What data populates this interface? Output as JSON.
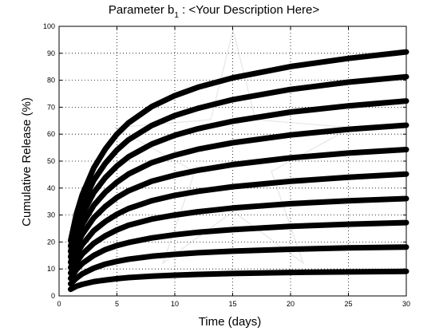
{
  "chart_data": {
    "type": "line",
    "title": {
      "prefix": "Parameter b",
      "subscript": "1",
      "suffix": " : <Your Description Here>"
    },
    "xlabel": "Time (days)",
    "ylabel": "Cumulative Release (%)",
    "xlim": [
      0,
      30
    ],
    "ylim": [
      0,
      100
    ],
    "xticks": [
      0,
      5,
      10,
      15,
      20,
      25,
      30
    ],
    "yticks": [
      0,
      10,
      20,
      30,
      40,
      50,
      60,
      70,
      80,
      90,
      100
    ],
    "grid": true,
    "legend": "none",
    "x": [
      1,
      1.5,
      2,
      3,
      4,
      5,
      6,
      8,
      10,
      12,
      15,
      20,
      25,
      30
    ],
    "series": [
      {
        "values": [
          2.5,
          3.6,
          4.3,
          5.3,
          5.9,
          6.4,
          6.8,
          7.3,
          7.7,
          8.0,
          8.3,
          8.7,
          8.9,
          9.1
        ]
      },
      {
        "values": [
          4.5,
          6.6,
          8.2,
          10.3,
          11.8,
          12.8,
          13.6,
          14.7,
          15.4,
          16.0,
          16.6,
          17.3,
          17.8,
          18.1
        ]
      },
      {
        "values": [
          6.5,
          9.8,
          12.0,
          15.0,
          17.2,
          18.7,
          19.8,
          21.5,
          22.7,
          23.6,
          24.6,
          25.8,
          26.6,
          27.2
        ]
      },
      {
        "values": [
          8.5,
          12.5,
          15.5,
          19.5,
          22.3,
          24.5,
          26.2,
          28.5,
          30.0,
          31.2,
          32.6,
          34.2,
          35.3,
          36.1
        ]
      },
      {
        "values": [
          10.5,
          15.5,
          19.0,
          24.2,
          27.6,
          30.3,
          32.4,
          35.3,
          37.3,
          38.8,
          40.5,
          42.5,
          44.0,
          45.2
        ]
      },
      {
        "values": [
          12.5,
          18.6,
          22.8,
          29.0,
          33.2,
          36.5,
          39.0,
          42.5,
          44.8,
          46.6,
          48.7,
          51.2,
          53.0,
          54.3
        ]
      },
      {
        "values": [
          14.5,
          21.6,
          26.5,
          33.6,
          38.5,
          42.2,
          45.2,
          49.4,
          52.2,
          54.4,
          56.8,
          59.7,
          61.8,
          63.3
        ]
      },
      {
        "values": [
          16.5,
          24.6,
          30.2,
          38.3,
          43.9,
          48.2,
          51.6,
          56.3,
          59.6,
          62.0,
          64.8,
          68.2,
          70.5,
          72.3
        ]
      },
      {
        "values": [
          18.5,
          27.6,
          33.9,
          42.9,
          49.2,
          54.1,
          57.9,
          63.2,
          66.9,
          69.6,
          72.8,
          76.6,
          79.3,
          81.3
        ]
      },
      {
        "values": [
          20.5,
          30.5,
          37.5,
          47.5,
          54.5,
          60.0,
          64.2,
          70.2,
          74.3,
          77.4,
          80.9,
          85.1,
          88.1,
          90.5
        ]
      }
    ]
  }
}
